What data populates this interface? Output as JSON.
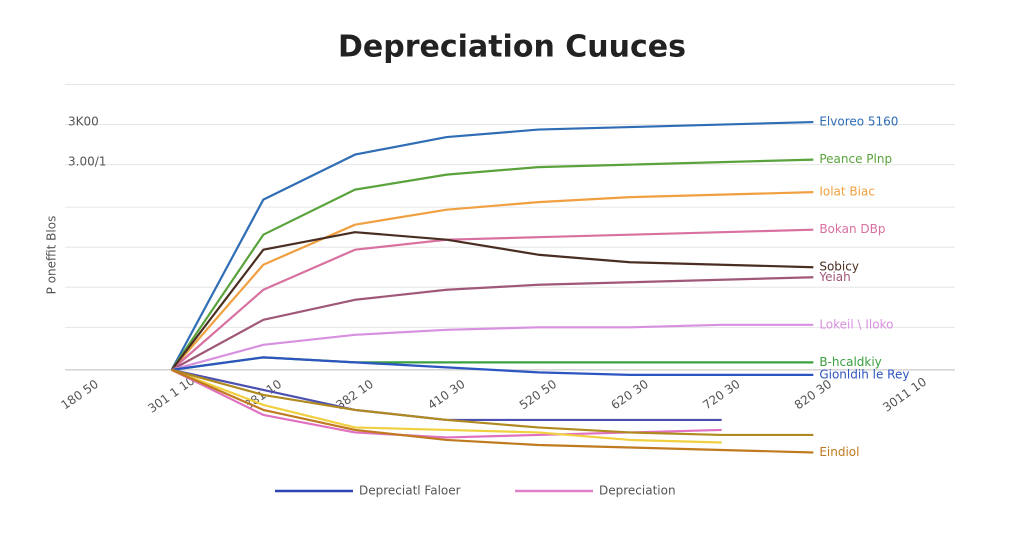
{
  "chart_data": {
    "type": "line",
    "title": "Depreciation Cuuces",
    "y_label": "P oneffit Blos",
    "categories": [
      "180 50",
      "301 1 10",
      "381 10",
      "382 10",
      "410 30",
      "520 50",
      "620 30",
      "720 30",
      "820 30",
      "3011 10"
    ],
    "ylim": [
      -40,
      115
    ],
    "yticks": [
      {
        "value": 99,
        "label": "3K00"
      },
      {
        "value": 83,
        "label": "3.00/1"
      }
    ],
    "gridlines": [
      114,
      98,
      82,
      65,
      49,
      33,
      17,
      0
    ],
    "grid": true,
    "series": [
      {
        "name": "Elvoreo 5160",
        "color": "#2f6db5",
        "values": [
          null,
          0,
          68,
          86,
          93,
          96,
          97,
          98,
          99,
          null
        ]
      },
      {
        "name": "Peance Plnp",
        "color": "#5aa33c",
        "values": [
          null,
          0,
          54,
          72,
          78,
          81,
          82,
          83,
          84,
          null
        ]
      },
      {
        "name": "Iolat Biac",
        "color": "#f0a040",
        "values": [
          null,
          0,
          42,
          58,
          64,
          67,
          69,
          70,
          71,
          null
        ]
      },
      {
        "name": "Bokan DBp",
        "color": "#d870a0",
        "values": [
          null,
          0,
          32,
          48,
          52,
          53,
          54,
          55,
          56,
          null
        ]
      },
      {
        "name": "Sobicy",
        "color": "#4a2e22",
        "values": [
          null,
          0,
          48,
          55,
          52,
          46,
          43,
          42,
          41,
          null
        ]
      },
      {
        "name": "Yeiah",
        "color": "#a05878",
        "values": [
          null,
          0,
          20,
          28,
          32,
          34,
          35,
          36,
          37,
          null
        ]
      },
      {
        "name": "Lokeil \\ Iloko",
        "color": "#d890e0",
        "values": [
          null,
          0,
          10,
          14,
          16,
          17,
          17,
          18,
          18,
          null
        ]
      },
      {
        "name": "B-hcaldkiy",
        "color": "#3aa040",
        "values": [
          null,
          0,
          5,
          3,
          3,
          3,
          3,
          3,
          3,
          null
        ]
      },
      {
        "name": "Gionldih le Rey",
        "color": "#2d55c0",
        "values": [
          null,
          0,
          5,
          3,
          1,
          -1,
          -2,
          -2,
          -2,
          null
        ]
      },
      {
        "color": "#4b4fb0",
        "values": [
          null,
          0,
          -8,
          -16,
          -20,
          -20,
          -20,
          -20,
          null,
          null
        ]
      },
      {
        "color": "#e070c0",
        "values": [
          null,
          0,
          -18,
          -25,
          -27,
          -26,
          -25,
          -24,
          null,
          null
        ]
      },
      {
        "color": "#f0d040",
        "values": [
          null,
          0,
          -14,
          -23,
          -24,
          -25,
          -28,
          -29,
          null,
          null
        ]
      },
      {
        "color": "#b08a20",
        "values": [
          null,
          0,
          -10,
          -16,
          -20,
          -23,
          -25,
          -26,
          -26,
          null
        ]
      },
      {
        "name": "Eindiol",
        "color": "#c07a20",
        "values": [
          null,
          0,
          -16,
          -24,
          -28,
          -30,
          -31,
          -32,
          -33,
          null
        ]
      }
    ],
    "legend": [
      {
        "label": "Depreciatl Faloer",
        "color": "#2d45b0"
      },
      {
        "label": "Depreciation",
        "color": "#e080c8"
      }
    ]
  }
}
